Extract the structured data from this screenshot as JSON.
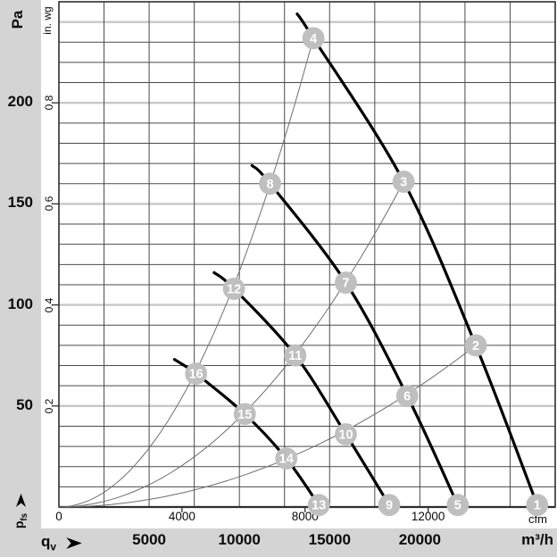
{
  "colors": {
    "band_bg": "#d4d4d4",
    "plot_bg": "#ffffff",
    "grid_minor": "#4a4a4a",
    "grid_major": "#c7c7c7",
    "axis": "#2e2e2e",
    "fan_curve": "#000000",
    "system_curve": "#6e6e6e",
    "marker_fill": "#bfbfbf",
    "marker_text": "#ffffff",
    "text": "#0a0a0a"
  },
  "chart_data": {
    "type": "line",
    "y_axis": {
      "unit_primary": "Pa",
      "unit_secondary": "in. wg",
      "quantity_symbol": "p",
      "quantity_sub": "fs",
      "range_pa": [
        0,
        250
      ],
      "ticks_pa": [
        200,
        150,
        100,
        50
      ],
      "ticks_inwg": [
        {
          "label": "0.8",
          "pa": 200
        },
        {
          "label": "0.6",
          "pa": 150
        },
        {
          "label": "0.4",
          "pa": 100
        },
        {
          "label": "0.2",
          "pa": 50
        }
      ]
    },
    "x_axis": {
      "unit_primary": "cfm",
      "unit_secondary": "m³/h",
      "quantity_symbol": "q",
      "quantity_sub": "v",
      "range_m3h": [
        0,
        27500
      ],
      "cfm_to_m3h": 1.705,
      "ticks_primary": [
        {
          "label": "0",
          "cfm": 0
        },
        {
          "label": "4000",
          "cfm": 4000
        },
        {
          "label": "8000",
          "cfm": 8000
        },
        {
          "label": "12000",
          "cfm": 12000
        }
      ],
      "ticks_secondary_m3h": [
        5000,
        10000,
        15000,
        20000
      ]
    },
    "grid": {
      "minor_pa_step": 10,
      "major_pa_values": [
        50,
        100,
        150,
        200,
        240
      ],
      "vertical_m3h_step": 2500
    },
    "fan_curves": [
      {
        "name": "speed-curve-1",
        "marker_labels": [
          "4",
          "3",
          "2",
          "1"
        ],
        "points_m3h_pa": [
          [
            13200,
            244
          ],
          [
            14100,
            232
          ],
          [
            19100,
            161
          ],
          [
            23100,
            80
          ],
          [
            26500,
            1
          ]
        ]
      },
      {
        "name": "speed-curve-2",
        "marker_labels": [
          "8",
          "7",
          "6",
          "5"
        ],
        "points_m3h_pa": [
          [
            10700,
            169
          ],
          [
            11700,
            160
          ],
          [
            15900,
            111
          ],
          [
            19300,
            55
          ],
          [
            22100,
            1
          ]
        ]
      },
      {
        "name": "speed-curve-3",
        "marker_labels": [
          "12",
          "11",
          "10",
          "9"
        ],
        "points_m3h_pa": [
          [
            8600,
            116
          ],
          [
            9700,
            108
          ],
          [
            13100,
            75
          ],
          [
            15900,
            36
          ],
          [
            18300,
            1
          ]
        ]
      },
      {
        "name": "speed-curve-4",
        "marker_labels": [
          "16",
          "15",
          "14",
          "13"
        ],
        "points_m3h_pa": [
          [
            6400,
            73
          ],
          [
            7600,
            66
          ],
          [
            10300,
            46
          ],
          [
            12600,
            24
          ],
          [
            14400,
            1
          ]
        ]
      }
    ],
    "system_curves": [
      {
        "apex_m3h": 14100,
        "apex_pa": 232
      },
      {
        "apex_m3h": 19100,
        "apex_pa": 161
      },
      {
        "apex_m3h": 23100,
        "apex_pa": 80
      }
    ],
    "markers": [
      {
        "label": "1",
        "m3h": 26500,
        "pa": 1
      },
      {
        "label": "2",
        "m3h": 23100,
        "pa": 80
      },
      {
        "label": "3",
        "m3h": 19100,
        "pa": 161
      },
      {
        "label": "4",
        "m3h": 14100,
        "pa": 232
      },
      {
        "label": "5",
        "m3h": 22100,
        "pa": 1
      },
      {
        "label": "6",
        "m3h": 19300,
        "pa": 55
      },
      {
        "label": "7",
        "m3h": 15900,
        "pa": 111
      },
      {
        "label": "8",
        "m3h": 11700,
        "pa": 160
      },
      {
        "label": "9",
        "m3h": 18300,
        "pa": 1
      },
      {
        "label": "10",
        "m3h": 15900,
        "pa": 36
      },
      {
        "label": "11",
        "m3h": 13100,
        "pa": 75
      },
      {
        "label": "12",
        "m3h": 9700,
        "pa": 108
      },
      {
        "label": "13",
        "m3h": 14400,
        "pa": 1
      },
      {
        "label": "14",
        "m3h": 12600,
        "pa": 24
      },
      {
        "label": "15",
        "m3h": 10300,
        "pa": 46
      },
      {
        "label": "16",
        "m3h": 7600,
        "pa": 66
      }
    ]
  }
}
